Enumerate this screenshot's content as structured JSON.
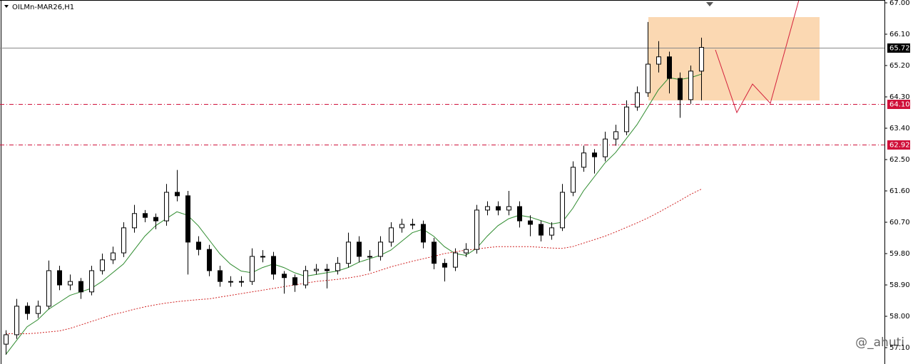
{
  "chart_data": {
    "type": "candlestick",
    "title": "OILMn-MAR26,H1",
    "watermark": "@_ahuti",
    "ylim": [
      56.63,
      67.0
    ],
    "yticks": [
      {
        "value": 67.0,
        "label": "67.00"
      },
      {
        "value": 66.1,
        "label": "66.10"
      },
      {
        "value": 65.2,
        "label": "65.20"
      },
      {
        "value": 64.3,
        "label": "64.30"
      },
      {
        "value": 63.4,
        "label": "63.40"
      },
      {
        "value": 62.5,
        "label": "62.50"
      },
      {
        "value": 61.6,
        "label": "61.60"
      },
      {
        "value": 60.7,
        "label": "60.70"
      },
      {
        "value": 59.8,
        "label": "59.80"
      },
      {
        "value": 58.9,
        "label": "58.90"
      },
      {
        "value": 58.0,
        "label": "58.00"
      },
      {
        "value": 57.1,
        "label": "57.10"
      }
    ],
    "levels": [
      {
        "value": 65.72,
        "color": "#000000"
      },
      {
        "value": {
          "value": 64.1,
          "label": "64.10"
        },
        "color": "#d0103a"
      },
      {
        "value": 62.92,
        "color": "#d0103a"
      }
    ],
    "ohlc": [
      [
        57.2,
        57.6,
        56.9,
        57.47
      ],
      [
        57.47,
        58.5,
        57.35,
        58.29
      ],
      [
        58.29,
        58.4,
        57.9,
        58.08
      ],
      [
        58.08,
        58.45,
        57.95,
        58.29
      ],
      [
        58.29,
        59.6,
        58.2,
        59.31
      ],
      [
        59.31,
        59.45,
        58.75,
        58.9
      ],
      [
        58.9,
        59.2,
        58.75,
        59.0
      ],
      [
        59.0,
        59.1,
        58.5,
        58.7
      ],
      [
        58.7,
        59.45,
        58.6,
        59.31
      ],
      [
        59.31,
        59.8,
        59.2,
        59.62
      ],
      [
        59.62,
        60.0,
        59.5,
        59.82
      ],
      [
        59.82,
        60.7,
        59.7,
        60.54
      ],
      [
        60.54,
        61.2,
        60.4,
        60.95
      ],
      [
        60.95,
        61.05,
        60.7,
        60.84
      ],
      [
        60.84,
        60.95,
        60.5,
        60.74
      ],
      [
        60.74,
        61.8,
        60.6,
        61.56
      ],
      [
        61.56,
        62.2,
        61.3,
        61.46
      ],
      [
        61.46,
        61.6,
        59.2,
        60.13
      ],
      [
        60.13,
        60.3,
        59.75,
        59.92
      ],
      [
        59.92,
        60.05,
        59.15,
        59.31
      ],
      [
        59.31,
        59.45,
        58.85,
        59.0
      ],
      [
        59.0,
        59.15,
        58.85,
        59.0
      ],
      [
        59.0,
        59.15,
        58.85,
        59.0
      ],
      [
        59.0,
        59.95,
        58.9,
        59.72
      ],
      [
        59.72,
        59.9,
        59.55,
        59.72
      ],
      [
        59.72,
        59.85,
        59.05,
        59.21
      ],
      [
        59.21,
        59.3,
        58.65,
        59.11
      ],
      [
        59.11,
        59.2,
        58.7,
        58.9
      ],
      [
        58.9,
        59.45,
        58.8,
        59.31
      ],
      [
        59.31,
        59.5,
        59.2,
        59.35
      ],
      [
        59.35,
        59.5,
        58.8,
        59.31
      ],
      [
        59.31,
        59.7,
        59.2,
        59.52
      ],
      [
        59.52,
        60.4,
        59.4,
        60.13
      ],
      [
        60.13,
        60.3,
        59.55,
        59.72
      ],
      [
        59.72,
        59.9,
        59.3,
        59.72
      ],
      [
        59.72,
        60.3,
        59.6,
        60.13
      ],
      [
        60.13,
        60.7,
        60.0,
        60.54
      ],
      [
        60.54,
        60.8,
        60.4,
        60.64
      ],
      [
        60.64,
        60.8,
        60.5,
        60.64
      ],
      [
        60.64,
        60.75,
        59.95,
        60.13
      ],
      [
        60.13,
        60.25,
        59.35,
        59.52
      ],
      [
        59.52,
        59.65,
        59.0,
        59.41
      ],
      [
        59.41,
        59.95,
        59.3,
        59.82
      ],
      [
        59.82,
        60.1,
        59.7,
        59.92
      ],
      [
        59.92,
        61.2,
        59.8,
        61.05
      ],
      [
        61.05,
        61.3,
        60.9,
        61.15
      ],
      [
        61.15,
        61.3,
        60.9,
        61.05
      ],
      [
        61.05,
        61.6,
        60.9,
        61.15
      ],
      [
        61.15,
        61.3,
        60.55,
        60.74
      ],
      [
        60.74,
        60.9,
        60.3,
        60.64
      ],
      [
        60.64,
        60.75,
        60.15,
        60.33
      ],
      [
        60.33,
        60.7,
        60.2,
        60.54
      ],
      [
        60.54,
        61.8,
        60.45,
        61.56
      ],
      [
        61.56,
        62.45,
        61.45,
        62.28
      ],
      [
        62.28,
        62.9,
        62.15,
        62.69
      ],
      [
        62.69,
        62.8,
        62.1,
        62.58
      ],
      [
        62.58,
        63.3,
        62.45,
        63.09
      ],
      [
        63.09,
        63.5,
        62.9,
        63.3
      ],
      [
        63.3,
        64.2,
        63.2,
        64.01
      ],
      [
        64.01,
        64.6,
        63.9,
        64.42
      ],
      [
        64.42,
        66.45,
        64.3,
        65.24
      ],
      [
        65.24,
        65.9,
        65.0,
        65.45
      ],
      [
        65.45,
        65.6,
        64.4,
        64.83
      ],
      [
        64.83,
        65.0,
        63.7,
        64.22
      ],
      [
        64.22,
        65.2,
        64.1,
        65.04
      ],
      [
        65.04,
        66.0,
        64.2,
        65.72
      ]
    ],
    "series": [
      {
        "color": "#2e8b2e",
        "style": "solid",
        "values": [
          56.9,
          57.3,
          57.7,
          57.9,
          58.2,
          58.4,
          58.6,
          58.7,
          58.8,
          59.0,
          59.25,
          59.5,
          59.9,
          60.3,
          60.6,
          60.8,
          61.0,
          60.9,
          60.6,
          60.2,
          59.8,
          59.5,
          59.3,
          59.25,
          59.4,
          59.5,
          59.4,
          59.25,
          59.15,
          59.2,
          59.25,
          59.3,
          59.4,
          59.55,
          59.65,
          59.75,
          59.9,
          60.15,
          60.4,
          60.5,
          60.3,
          60.0,
          59.8,
          59.75,
          59.95,
          60.3,
          60.6,
          60.8,
          60.9,
          60.85,
          60.75,
          60.65,
          60.7,
          61.1,
          61.6,
          62.0,
          62.4,
          62.7,
          63.1,
          63.5,
          64.0,
          64.5,
          64.85,
          64.8,
          64.85,
          64.95
        ]
      },
      {
        "color": "#d02020",
        "style": "dotted",
        "values": [
          57.5,
          57.5,
          57.5,
          57.52,
          57.55,
          57.58,
          57.65,
          57.75,
          57.85,
          57.95,
          58.05,
          58.12,
          58.2,
          58.27,
          58.33,
          58.38,
          58.42,
          58.45,
          58.48,
          58.5,
          58.55,
          58.6,
          58.65,
          58.7,
          58.75,
          58.8,
          58.85,
          58.9,
          58.95,
          59.0,
          59.03,
          59.06,
          59.1,
          59.15,
          59.22,
          59.32,
          59.42,
          59.5,
          59.58,
          59.65,
          59.72,
          59.8,
          59.85,
          59.9,
          59.93,
          59.97,
          60.0,
          60.0,
          60.0,
          60.0,
          59.98,
          59.96,
          59.95,
          60.0,
          60.1,
          60.2,
          60.3,
          60.42,
          60.55,
          60.68,
          60.82,
          60.98,
          61.15,
          61.32,
          61.5,
          61.65
        ]
      }
    ]
  }
}
